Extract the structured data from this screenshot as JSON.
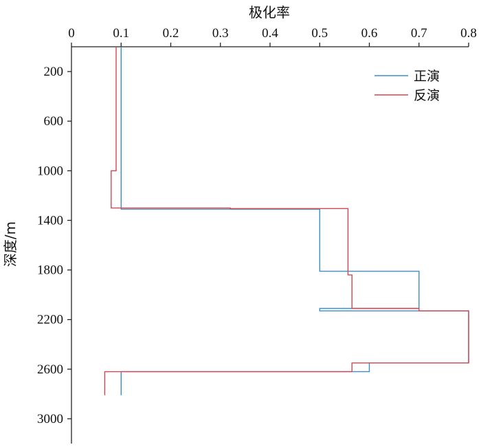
{
  "chart_data": {
    "type": "line",
    "xlabel": "极化率",
    "ylabel": "深度/m",
    "x_ticks": [
      "0",
      "0.1",
      "0.2",
      "0.3",
      "0.4",
      "0.5",
      "0.6",
      "0.7",
      "0.8"
    ],
    "y_ticks": [
      "200",
      "600",
      "1000",
      "1400",
      "1800",
      "2200",
      "2600",
      "3000"
    ],
    "xlim": [
      0,
      0.8
    ],
    "ylim": [
      0,
      3200
    ],
    "x_axis_position": "top",
    "y_inverted": true,
    "grid": false,
    "legend_position": "top-right",
    "series": [
      {
        "name": "正演",
        "color": "#3a8ec7",
        "points": [
          [
            0.1,
            0
          ],
          [
            0.1,
            1310
          ],
          [
            0.5,
            1310
          ],
          [
            0.5,
            1810
          ],
          [
            0.7,
            1810
          ],
          [
            0.7,
            2110
          ],
          [
            0.5,
            2110
          ],
          [
            0.5,
            2130
          ],
          [
            0.8,
            2130
          ],
          [
            0.8,
            2550
          ],
          [
            0.6,
            2550
          ],
          [
            0.6,
            2620
          ],
          [
            0.1,
            2620
          ],
          [
            0.1,
            2810
          ]
        ]
      },
      {
        "name": "反演",
        "color": "#d9454e",
        "points": [
          [
            0.09,
            0
          ],
          [
            0.09,
            1000
          ],
          [
            0.08,
            1000
          ],
          [
            0.08,
            1300
          ],
          [
            0.32,
            1300
          ],
          [
            0.32,
            1305
          ],
          [
            0.557,
            1305
          ],
          [
            0.557,
            1840
          ],
          [
            0.565,
            1840
          ],
          [
            0.565,
            2110
          ],
          [
            0.7,
            2110
          ],
          [
            0.7,
            2130
          ],
          [
            0.8,
            2130
          ],
          [
            0.8,
            2550
          ],
          [
            0.565,
            2550
          ],
          [
            0.565,
            2620
          ],
          [
            0.067,
            2620
          ],
          [
            0.067,
            2810
          ]
        ]
      }
    ]
  }
}
